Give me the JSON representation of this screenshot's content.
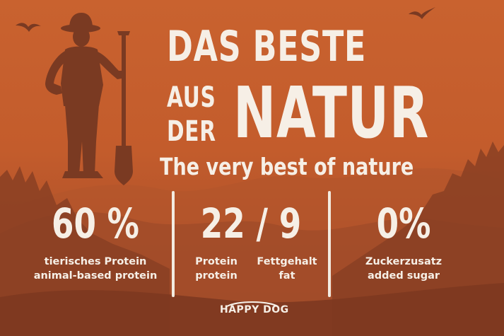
{
  "headline": {
    "line1": "DAS BESTE",
    "line2a": "AUS",
    "line2b": "DER",
    "line3": "NATUR",
    "subtitle": "The very best of nature"
  },
  "stats": [
    {
      "value": "60 %",
      "labels": [
        "tierisches Protein",
        "animal-based protein"
      ]
    },
    {
      "value": "22 / 9",
      "labels_left": [
        "Protein",
        "protein"
      ],
      "labels_right": [
        "Fettgehalt",
        "fat"
      ]
    },
    {
      "value": "0%",
      "labels": [
        "Zuckerzusatz",
        "added sugar"
      ]
    }
  ],
  "brand": {
    "logo_text": "HAPPY DOG"
  },
  "colors": {
    "background": "#c35c2c",
    "hills_dark": "#8a3f23",
    "farmer": "#7a3a22",
    "text": "#f6efe6"
  },
  "icons": [
    "farmer-illustration",
    "bird-icon",
    "bird-icon",
    "hills-silhouette"
  ]
}
